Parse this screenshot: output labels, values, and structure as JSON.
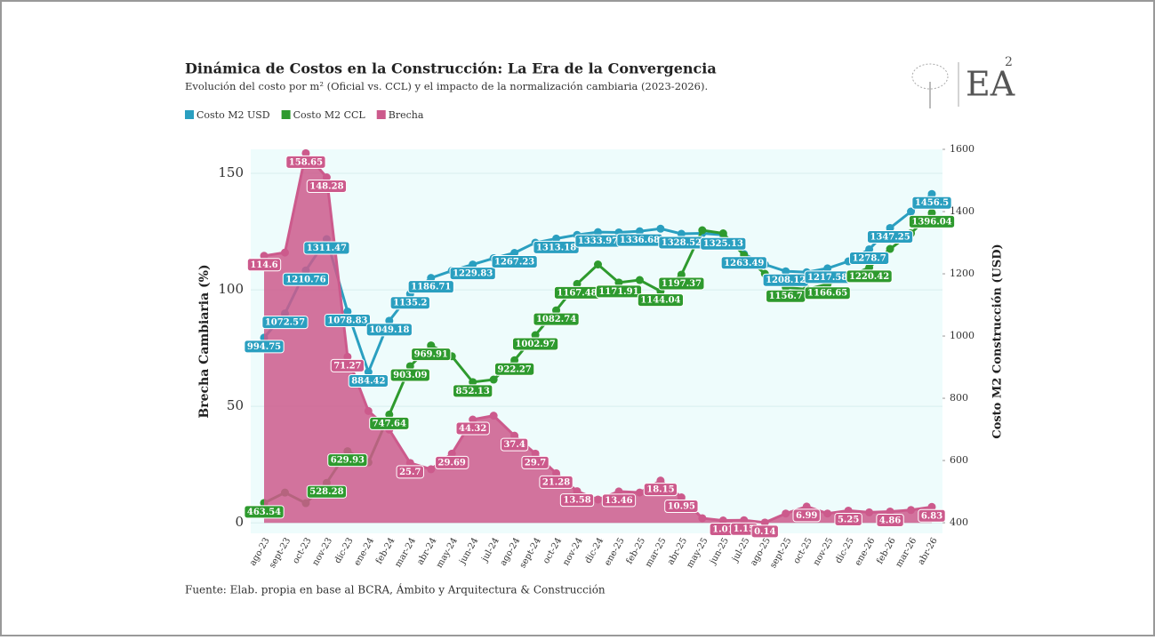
{
  "chart_data": {
    "type": "line",
    "title": "Dinámica de Costos en la Construcción: La Era de la Convergencia",
    "subtitle": "Evolución del costo por m² (Oficial vs. CCL) y el impacto de la normalización cambiaria (2023-2026).",
    "source": "Fuente: Elab. propia en base al BCRA, Ámbito y Arquitectura & Construcción",
    "logo": "EA",
    "logo_sup": "2",
    "ylabel": "Brecha Cambiaria (%)",
    "y2label": "Costo M2 Construcción (USD)",
    "categories": [
      "ago-23",
      "sept-23",
      "oct-23",
      "nov-23",
      "dic-23",
      "ene-24",
      "feb-24",
      "mar-24",
      "abr-24",
      "may-24",
      "jun-24",
      "jul-24",
      "ago-24",
      "sept-24",
      "oct-24",
      "nov-24",
      "dic-24",
      "ene-25",
      "feb-25",
      "mar-25",
      "abr-25",
      "may-25",
      "jun-25",
      "jul-25",
      "ago-25",
      "sept-25",
      "oct-25",
      "nov-25",
      "dic-25",
      "ene-26",
      "feb-26",
      "mar-26",
      "abr-26"
    ],
    "ylim": [
      -4.5,
      160.3
    ],
    "yticks": [
      0,
      50,
      100,
      150
    ],
    "y2lim": [
      366,
      1600
    ],
    "y2ticks": [
      400,
      600,
      800,
      1000,
      1200,
      1400,
      1600
    ],
    "grid": true,
    "series": [
      {
        "name": "Costo M2 USD",
        "color": "#2a9fc0",
        "axis": "y2",
        "values": [
          994.75,
          1072.57,
          1210.76,
          1311.47,
          1078.83,
          884.42,
          1049.18,
          1135.2,
          1186.71,
          1210,
          1229.83,
          1250,
          1267.23,
          1300,
          1313.18,
          1325,
          1333.97,
          1333,
          1336.68,
          1345,
          1328.52,
          1330,
          1325.13,
          1263.49,
          1230,
          1208.12,
          1205,
          1217.58,
          1240,
          1278.7,
          1347.25,
          1400,
          1456.5
        ],
        "value_labels": [
          "994.75",
          "1072.57",
          "1210.76",
          "1311.47",
          "1078.83",
          "884.42",
          "1049.18",
          "1135.2",
          "1186.71",
          null,
          "1229.83",
          null,
          "1267.23",
          null,
          "1313.18",
          null,
          "1333.97",
          null,
          "1336.68",
          null,
          "1328.52",
          null,
          "1325.13",
          "1263.49",
          null,
          "1208.12",
          null,
          "1217.58",
          null,
          "1278.7",
          "1347.25",
          null,
          "1456.5"
        ]
      },
      {
        "name": "Costo M2 CCL",
        "color": "#2e9a2e",
        "axis": "y2",
        "values": [
          463.54,
          497,
          463,
          528.28,
          629.93,
          594,
          747.64,
          903.09,
          969.91,
          935,
          852.13,
          860,
          922.27,
          1002.97,
          1082.74,
          1167.48,
          1230,
          1171.91,
          1180,
          1144.04,
          1197.37,
          1340,
          1330,
          1260,
          1200,
          1156.7,
          1150,
          1166.65,
          1190,
          1220.42,
          1280,
          1330,
          1396.04
        ],
        "value_labels": [
          "463.54",
          null,
          null,
          "528.28",
          "629.93",
          null,
          "747.64",
          "903.09",
          "969.91",
          null,
          "852.13",
          null,
          "922.27",
          "1002.97",
          "1082.74",
          "1167.48",
          null,
          "1171.91",
          null,
          "1144.04",
          "1197.37",
          null,
          null,
          null,
          null,
          "1156.7",
          null,
          "1166.65",
          null,
          "1220.42",
          null,
          null,
          "1396.04"
        ]
      },
      {
        "name": "Brecha",
        "color": "#cc5a8c",
        "fill": true,
        "values": [
          114.6,
          116,
          158.65,
          148.28,
          71.27,
          48,
          40,
          25.7,
          23,
          29.69,
          44.32,
          46,
          37.4,
          29.7,
          21.28,
          13.58,
          10,
          13.46,
          13,
          18.15,
          10.95,
          2,
          1.01,
          1.15,
          0.14,
          4,
          6.99,
          4,
          5.25,
          4.5,
          4.86,
          5.5,
          6.83
        ],
        "value_labels": [
          "114.6",
          null,
          "158.65",
          "148.28",
          "71.27",
          null,
          null,
          "25.7",
          null,
          "29.69",
          "44.32",
          null,
          "37.4",
          "29.7",
          "21.28",
          "13.58",
          null,
          "13.46",
          null,
          "18.15",
          "10.95",
          null,
          "1.01",
          "1.15",
          "0.14",
          null,
          "6.99",
          null,
          "5.25",
          null,
          "4.86",
          null,
          "6.83"
        ]
      }
    ]
  }
}
